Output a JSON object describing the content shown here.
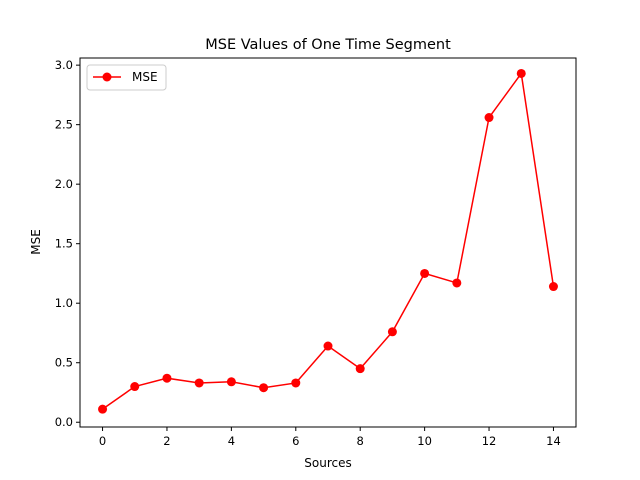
{
  "chart_data": {
    "type": "line",
    "title": "MSE Values of One Time Segment",
    "xlabel": "Sources",
    "ylabel": "MSE",
    "xlim": [
      -0.7,
      14.7
    ],
    "ylim": [
      -0.04,
      3.06
    ],
    "xticks": [
      0,
      2,
      4,
      6,
      8,
      10,
      12,
      14
    ],
    "xtick_labels": [
      "0",
      "2",
      "4",
      "6",
      "8",
      "10",
      "12",
      "14"
    ],
    "yticks": [
      0.0,
      0.5,
      1.0,
      1.5,
      2.0,
      2.5,
      3.0
    ],
    "ytick_labels": [
      "0.0",
      "0.5",
      "1.0",
      "1.5",
      "2.0",
      "2.5",
      "3.0"
    ],
    "grid": false,
    "legend": {
      "position": "top-left"
    },
    "series": [
      {
        "name": "MSE",
        "color": "#ff0000",
        "marker": "circle",
        "x": [
          0,
          1,
          2,
          3,
          4,
          5,
          6,
          7,
          8,
          9,
          10,
          11,
          12,
          13,
          14
        ],
        "y": [
          0.11,
          0.3,
          0.37,
          0.33,
          0.34,
          0.29,
          0.33,
          0.64,
          0.45,
          0.76,
          1.25,
          1.17,
          2.56,
          2.93,
          1.14
        ]
      }
    ]
  }
}
